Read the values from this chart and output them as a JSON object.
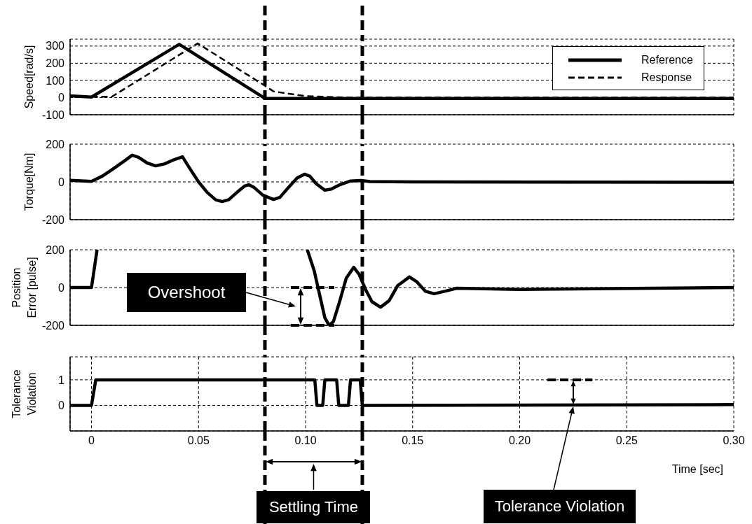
{
  "chart_data": [
    {
      "type": "line",
      "ylabel": "Speed[rad/s]",
      "xlim": [
        -0.01,
        0.3
      ],
      "xticks": [
        0,
        0.05,
        0.1,
        0.15,
        0.2,
        0.25,
        0.3
      ],
      "ylim": [
        -100,
        340
      ],
      "yticks": [
        -100,
        0,
        100,
        200,
        300
      ],
      "grid": true,
      "legend": "top right",
      "tick_labels": "y",
      "ref_lines": [
        {
          "axis": "x",
          "value": 0.081,
          "color": "#000000",
          "line_style": "dashed"
        },
        {
          "axis": "x",
          "value": 0.1265,
          "color": "#000000",
          "line_style": "dashed"
        }
      ],
      "series": [
        {
          "name": "Reference",
          "color": "#000000",
          "line_style": "solid",
          "x": [
            -0.01,
            0,
            0.041,
            0.081,
            0.3
          ],
          "values": [
            10,
            3,
            310,
            -5,
            -5
          ]
        },
        {
          "name": "Response",
          "color": "#000000",
          "line_style": "dashed",
          "x": [
            0,
            0.0095,
            0.0496,
            0.081,
            0.085,
            0.1,
            0.12,
            0.3
          ],
          "values": [
            5,
            5,
            315,
            69,
            36,
            8,
            0,
            0
          ]
        }
      ]
    },
    {
      "type": "line",
      "ylabel": "Torque[Nm]",
      "xlim": [
        -0.01,
        0.3
      ],
      "xticks": [
        0,
        0.05,
        0.1,
        0.15,
        0.2,
        0.25,
        0.3
      ],
      "ylim": [
        -200,
        200
      ],
      "yticks": [
        -200,
        0,
        200
      ],
      "grid": true,
      "tick_labels": "y",
      "line_style": "solid",
      "ref_lines": [
        {
          "axis": "x",
          "value": 0.081,
          "color": "#000000",
          "line_style": "dashed"
        },
        {
          "axis": "x",
          "value": 0.1265,
          "color": "#000000",
          "line_style": "dashed"
        }
      ],
      "series": [
        {
          "color": "#000000",
          "x": [
            -0.01,
            0,
            0.005,
            0.01,
            0.015,
            0.019,
            0.022,
            0.026,
            0.03,
            0.034,
            0.038,
            0.0425,
            0.046,
            0.05,
            0.054,
            0.058,
            0.061,
            0.064,
            0.068,
            0.0715,
            0.0735,
            0.076,
            0.08,
            0.085,
            0.088,
            0.092,
            0.096,
            0.0995,
            0.102,
            0.105,
            0.109,
            0.112,
            0.116,
            0.121,
            0.126,
            0.13,
            0.15,
            0.3
          ],
          "values": [
            8,
            3,
            30,
            68,
            108,
            141,
            130,
            100,
            85,
            95,
            115,
            133,
            70,
            0,
            -55,
            -95,
            -104,
            -95,
            -55,
            -22,
            -15,
            -30,
            -70,
            -93,
            -82,
            -30,
            20,
            41,
            30,
            -10,
            -44,
            -38,
            -15,
            5,
            7,
            2,
            0,
            -2
          ]
        }
      ]
    },
    {
      "type": "line",
      "ylabel": "Position Error [pulse]",
      "xlim": [
        -0.01,
        0.3
      ],
      "xticks": [
        0,
        0.05,
        0.1,
        0.15,
        0.2,
        0.25,
        0.3
      ],
      "ylim": [
        -200,
        200
      ],
      "yticks": [
        -200,
        0,
        200
      ],
      "grid": true,
      "tick_labels": "y",
      "line_style": "solid",
      "ref_lines": [
        {
          "axis": "x",
          "value": 0.081,
          "color": "#000000",
          "line_style": "dashed"
        },
        {
          "axis": "x",
          "value": 0.1265,
          "color": "#000000",
          "line_style": "dashed"
        }
      ],
      "annotations": [
        "Overshoot"
      ],
      "series": [
        {
          "color": "#000000",
          "x": [
            -0.01,
            0,
            0.0026,
            0.05,
            0.1008,
            0.104,
            0.107,
            0.109,
            0.111,
            0.113,
            0.116,
            0.119,
            0.1225,
            0.125,
            0.128,
            0.131,
            0.135,
            0.139,
            0.143,
            0.1485,
            0.152,
            0.156,
            0.16,
            0.165,
            0.1705,
            0.2,
            0.3
          ],
          "values": [
            0,
            0,
            200,
            null,
            200,
            90,
            -60,
            -160,
            -200,
            -180,
            -70,
            50,
            107,
            70,
            -10,
            -75,
            -104,
            -70,
            10,
            56,
            30,
            -20,
            -33,
            -20,
            -4,
            -10,
            0
          ]
        }
      ]
    },
    {
      "type": "line",
      "ylabel": "Tolerance Violation",
      "xlabel": "Time [sec]",
      "xlim": [
        -0.01,
        0.3
      ],
      "xticks": [
        0,
        0.05,
        {
          "value": 0.1,
          "label": "0.10"
        },
        0.15,
        {
          "value": 0.2,
          "label": "0.20"
        },
        0.25,
        {
          "value": 0.3,
          "label": "0.30"
        }
      ],
      "ylim": [
        -1,
        1.9
      ],
      "yticks": [
        0,
        1
      ],
      "grid": true,
      "line_style": "solid",
      "ref_lines": [
        {
          "axis": "x",
          "value": 0.081,
          "color": "#000000",
          "line_style": "dashed"
        },
        {
          "axis": "x",
          "value": 0.1265,
          "color": "#000000",
          "line_style": "dashed"
        }
      ],
      "annotations": [
        "Settling Time",
        "Tolerance Violation"
      ],
      "series": [
        {
          "color": "#000000",
          "x": [
            -0.01,
            0,
            0.002,
            0.1043,
            0.1053,
            0.108,
            0.109,
            0.1145,
            0.1155,
            0.12,
            0.121,
            0.1255,
            0.1265,
            0.3
          ],
          "values": [
            0,
            0,
            1,
            1,
            0,
            0,
            1,
            1,
            0,
            0,
            1,
            1,
            0,
            0.03
          ]
        }
      ]
    }
  ]
}
